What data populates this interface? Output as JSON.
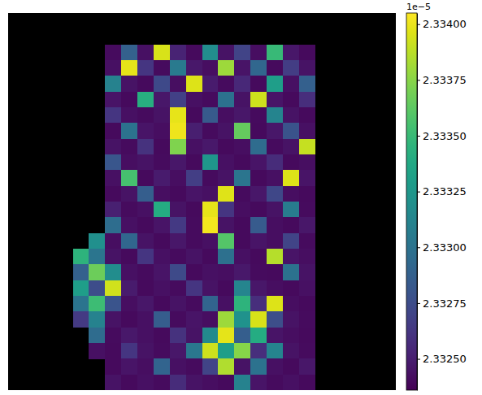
{
  "chart_data": {
    "type": "heatmap",
    "tick_labels": false,
    "cells": [
      [
        null,
        null,
        null,
        null,
        null,
        null,
        null,
        null,
        null,
        null,
        null,
        null,
        null,
        null,
        null,
        null,
        null,
        null,
        null,
        null,
        null,
        null,
        null,
        null
      ],
      [
        null,
        null,
        null,
        null,
        null,
        null,
        null,
        null,
        null,
        null,
        null,
        null,
        null,
        null,
        null,
        null,
        null,
        null,
        null,
        null,
        null,
        null,
        null,
        null
      ],
      [
        null,
        null,
        null,
        null,
        null,
        null,
        2.33241,
        2.33288,
        2.33243,
        2.33395,
        2.33252,
        2.3324,
        2.33318,
        2.33244,
        2.3327,
        2.33242,
        2.3335,
        2.33246,
        2.3324,
        null,
        null,
        null,
        null,
        null
      ],
      [
        null,
        null,
        null,
        null,
        null,
        null,
        2.33243,
        2.33398,
        2.33262,
        2.33241,
        2.33305,
        2.33247,
        2.33242,
        2.3338,
        2.33245,
        2.33292,
        2.3324,
        2.33266,
        2.33244,
        null,
        null,
        null,
        null,
        null
      ],
      [
        null,
        null,
        null,
        null,
        null,
        null,
        2.3331,
        2.33244,
        2.3324,
        2.33273,
        2.33242,
        2.33396,
        2.33248,
        2.33241,
        2.33255,
        2.3324,
        2.3333,
        2.33243,
        2.33287,
        null,
        null,
        null,
        null,
        null
      ],
      [
        null,
        null,
        null,
        null,
        null,
        null,
        2.33245,
        2.3324,
        2.33342,
        2.33246,
        2.33268,
        2.33243,
        2.33241,
        2.33299,
        2.33244,
        2.33392,
        2.33245,
        2.3324,
        2.33258,
        null,
        null,
        null,
        null,
        null
      ],
      [
        null,
        null,
        null,
        null,
        null,
        null,
        2.33262,
        2.33243,
        2.33241,
        2.33244,
        2.33399,
        2.3324,
        2.33283,
        2.33242,
        2.33246,
        2.33241,
        2.33312,
        2.33244,
        2.3324,
        null,
        null,
        null,
        null,
        null
      ],
      [
        null,
        null,
        null,
        null,
        null,
        null,
        2.3324,
        2.333,
        2.33245,
        2.33242,
        2.33401,
        2.3325,
        2.33241,
        2.33244,
        2.33365,
        2.3324,
        2.33246,
        2.33279,
        2.33243,
        null,
        null,
        null,
        null,
        null
      ],
      [
        null,
        null,
        null,
        null,
        null,
        null,
        2.33244,
        2.33241,
        2.3326,
        2.3324,
        2.33372,
        2.33243,
        2.33247,
        2.3324,
        2.33242,
        2.33295,
        2.33241,
        2.33244,
        2.3339,
        null,
        null,
        null,
        null,
        null
      ],
      [
        null,
        null,
        null,
        null,
        null,
        null,
        2.33281,
        2.33242,
        2.33244,
        2.33241,
        2.33246,
        2.3324,
        2.33325,
        2.33243,
        2.3324,
        2.33245,
        2.33257,
        2.3324,
        2.33242,
        null,
        null,
        null,
        null,
        null
      ],
      [
        null,
        null,
        null,
        null,
        null,
        null,
        2.33243,
        2.33355,
        2.3324,
        2.33248,
        2.33242,
        2.33267,
        2.33241,
        2.33244,
        2.33302,
        2.3324,
        2.33243,
        2.33396,
        2.33245,
        null,
        null,
        null,
        null,
        null
      ],
      [
        null,
        null,
        null,
        null,
        null,
        null,
        2.3324,
        2.33244,
        2.33286,
        2.33242,
        2.3324,
        2.33245,
        2.33243,
        2.33397,
        2.33241,
        2.33246,
        2.33272,
        2.33242,
        2.3324,
        null,
        null,
        null,
        null,
        null
      ],
      [
        null,
        null,
        null,
        null,
        null,
        null,
        2.33251,
        2.33241,
        2.33243,
        2.3334,
        2.33244,
        2.3324,
        2.33399,
        2.33262,
        2.33242,
        2.3324,
        2.33244,
        2.33306,
        2.33241,
        null,
        null,
        null,
        null,
        null
      ],
      [
        null,
        null,
        null,
        null,
        null,
        null,
        2.33296,
        2.33243,
        2.3324,
        2.33245,
        2.33264,
        2.33241,
        2.33402,
        2.33244,
        2.3324,
        2.33284,
        2.33242,
        2.3324,
        2.33246,
        null,
        null,
        null,
        null,
        null
      ],
      [
        null,
        null,
        null,
        null,
        null,
        2.3332,
        2.33242,
        2.33291,
        2.33244,
        2.3324,
        2.33246,
        2.33241,
        2.33243,
        2.3336,
        2.3324,
        2.33245,
        2.33242,
        2.3327,
        2.33241,
        null,
        null,
        null,
        null,
        null
      ],
      [
        null,
        null,
        null,
        null,
        2.33345,
        2.33302,
        2.33244,
        2.3324,
        2.33262,
        2.33243,
        2.33241,
        2.33244,
        2.3324,
        2.33298,
        2.33243,
        2.3324,
        2.33386,
        2.33245,
        2.33242,
        null,
        null,
        null,
        null,
        null
      ],
      [
        null,
        null,
        null,
        null,
        2.33288,
        2.33367,
        2.33318,
        2.33243,
        2.33241,
        2.33245,
        2.33274,
        2.3324,
        2.33243,
        2.33242,
        2.33247,
        2.33241,
        2.3324,
        2.333,
        2.33244,
        null,
        null,
        null,
        null,
        null
      ],
      [
        null,
        null,
        null,
        null,
        2.3333,
        2.33275,
        2.33393,
        2.33248,
        2.3324,
        2.33243,
        2.33241,
        2.33262,
        2.33244,
        2.3324,
        2.33313,
        2.33246,
        2.33242,
        2.3324,
        2.33243,
        null,
        null,
        null,
        null,
        null
      ],
      [
        null,
        null,
        null,
        null,
        2.33301,
        2.33352,
        2.3328,
        2.33242,
        2.33246,
        2.3324,
        2.33244,
        2.33241,
        2.3329,
        2.33243,
        2.33345,
        2.33258,
        2.33396,
        2.33242,
        2.3324,
        null,
        null,
        null,
        null,
        null
      ],
      [
        null,
        null,
        null,
        null,
        2.33265,
        2.3331,
        2.33244,
        2.3324,
        2.33243,
        2.33285,
        2.33241,
        2.33245,
        2.33242,
        2.3338,
        2.33322,
        2.33395,
        2.33276,
        2.33244,
        2.33241,
        null,
        null,
        null,
        null,
        null
      ],
      [
        null,
        null,
        null,
        null,
        null,
        2.33295,
        2.33241,
        2.33247,
        2.33243,
        2.3324,
        2.3326,
        2.33244,
        2.33316,
        2.33398,
        2.33286,
        2.3334,
        2.33245,
        2.33242,
        2.3324,
        null,
        null,
        null,
        null,
        null
      ],
      [
        null,
        null,
        null,
        null,
        null,
        2.33243,
        2.3324,
        2.33262,
        2.33244,
        2.33241,
        2.33246,
        2.33303,
        2.33392,
        2.3333,
        2.33374,
        2.33258,
        2.33312,
        2.33244,
        2.33241,
        null,
        null,
        null,
        null,
        null
      ],
      [
        null,
        null,
        null,
        null,
        null,
        null,
        2.3324,
        2.33245,
        2.33242,
        2.3329,
        2.33243,
        2.33241,
        2.3327,
        2.33385,
        2.33244,
        2.333,
        2.33243,
        2.3324,
        2.33246,
        null,
        null,
        null,
        null,
        null
      ],
      [
        null,
        null,
        null,
        null,
        null,
        null,
        2.33244,
        2.3324,
        2.33243,
        2.33241,
        2.33257,
        2.33244,
        2.33242,
        2.3324,
        2.3331,
        2.33245,
        2.33241,
        2.33243,
        2.3324,
        null,
        null,
        null,
        null,
        null
      ]
    ],
    "colorbar": {
      "range": [
        2.33236,
        2.33405
      ],
      "ticks": [
        {
          "value": 2.3325,
          "label": "2.33250"
        },
        {
          "value": 2.33275,
          "label": "2.33275"
        },
        {
          "value": 2.333,
          "label": "2.33300"
        },
        {
          "value": 2.33325,
          "label": "2.33325"
        },
        {
          "value": 2.3335,
          "label": "2.33350"
        },
        {
          "value": 2.33375,
          "label": "2.33375"
        },
        {
          "value": 2.334,
          "label": "2.33400"
        }
      ],
      "offset_text": "1e−5"
    }
  }
}
